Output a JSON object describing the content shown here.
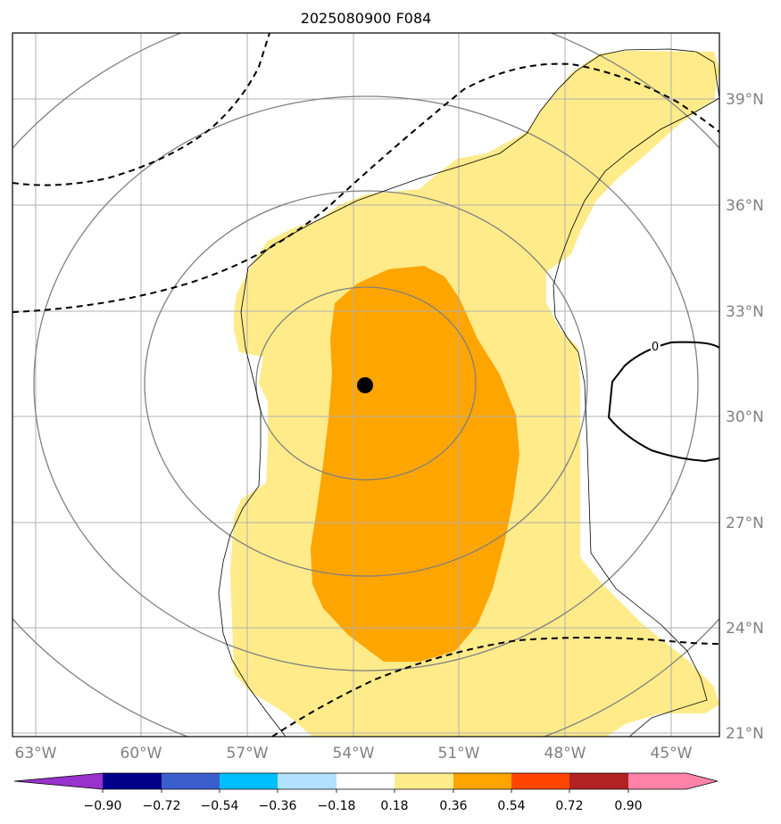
{
  "title": "2025080900 F084",
  "lon_labels": [
    "63°W",
    "60°W",
    "57°W",
    "54°W",
    "51°W",
    "48°W",
    "45°W"
  ],
  "lat_labels": [
    "39°N",
    "36°N",
    "33°N",
    "30°N",
    "27°N",
    "24°N",
    "21°N"
  ],
  "contour_label": "0",
  "colorbar": {
    "ticks": [
      "−0.90",
      "−0.72",
      "−0.54",
      "−0.36",
      "−0.18",
      "0.18",
      "0.36",
      "0.54",
      "0.72",
      "0.90"
    ],
    "colors": [
      "#9932cc",
      "#00008b",
      "#3a5fcd",
      "#00bfff",
      "#b0e2ff",
      "#ffffff",
      "#ffec8b",
      "#ffa500",
      "#ff4500",
      "#b22222",
      "#ff82ab"
    ]
  },
  "colors": {
    "light_fill": "#ffeb8a",
    "dark_fill": "#ffa500",
    "grid": "#b0b0b0",
    "circle": "#808080",
    "tick_text": "#808080"
  }
}
